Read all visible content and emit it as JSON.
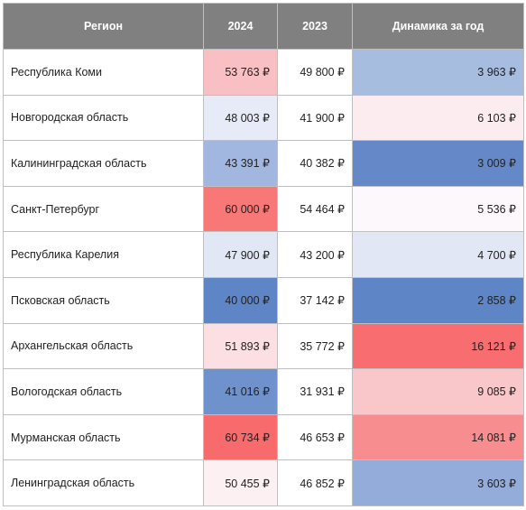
{
  "headers": {
    "region": "Регион",
    "y2024": "2024",
    "y2023": "2023",
    "dynamics": "Динамика за год"
  },
  "rows": [
    {
      "region": "Республика Коми",
      "y2024": "53 763 ₽",
      "y2023": "49 800 ₽",
      "dynamics": "3 963 ₽",
      "color_2024": "#f8c0c3",
      "color_dyn": "#a7bde0"
    },
    {
      "region": "Новгородская область",
      "y2024": "48 003 ₽",
      "y2023": "41 900 ₽",
      "dynamics": "6 103 ₽",
      "color_2024": "#e6ebf7",
      "color_dyn": "#fcecef"
    },
    {
      "region": "Калининградская область",
      "y2024": "43 391 ₽",
      "y2023": "40 382 ₽",
      "dynamics": "3 009 ₽",
      "color_2024": "#a2b7df",
      "color_dyn": "#6589c8"
    },
    {
      "region": "Санкт-Петербург",
      "y2024": "60 000 ₽",
      "y2023": "54 464 ₽",
      "dynamics": "5 536 ₽",
      "color_2024": "#f87878",
      "color_dyn": "#fcf8fb"
    },
    {
      "region": "Республика Карелия",
      "y2024": "47 900 ₽",
      "y2023": "43 200 ₽",
      "dynamics": "4 700 ₽",
      "color_2024": "#e1e7f5",
      "color_dyn": "#e1e7f5"
    },
    {
      "region": "Псковская область",
      "y2024": "40 000 ₽",
      "y2023": "37 142 ₽",
      "dynamics": "2 858 ₽",
      "color_2024": "#5e85c6",
      "color_dyn": "#5e85c6"
    },
    {
      "region": "Архангельская область",
      "y2024": "51 893 ₽",
      "y2023": "35 772 ₽",
      "dynamics": "16 121 ₽",
      "color_2024": "#fcdfe2",
      "color_dyn": "#f86d6f"
    },
    {
      "region": "Вологодская область",
      "y2024": "41 016 ₽",
      "y2023": "31 931 ₽",
      "dynamics": "9 085 ₽",
      "color_2024": "#6f92cc",
      "color_dyn": "#f9c7ca"
    },
    {
      "region": "Мурманская область",
      "y2024": "60 734 ₽",
      "y2023": "46 653 ₽",
      "dynamics": "14 081 ₽",
      "color_2024": "#f76b6d",
      "color_dyn": "#f88d8f"
    },
    {
      "region": "Ленинградская область",
      "y2024": "50 455 ₽",
      "y2023": "46 852 ₽",
      "dynamics": "3 603 ₽",
      "color_2024": "#fcf0f2",
      "color_dyn": "#93acda"
    }
  ]
}
